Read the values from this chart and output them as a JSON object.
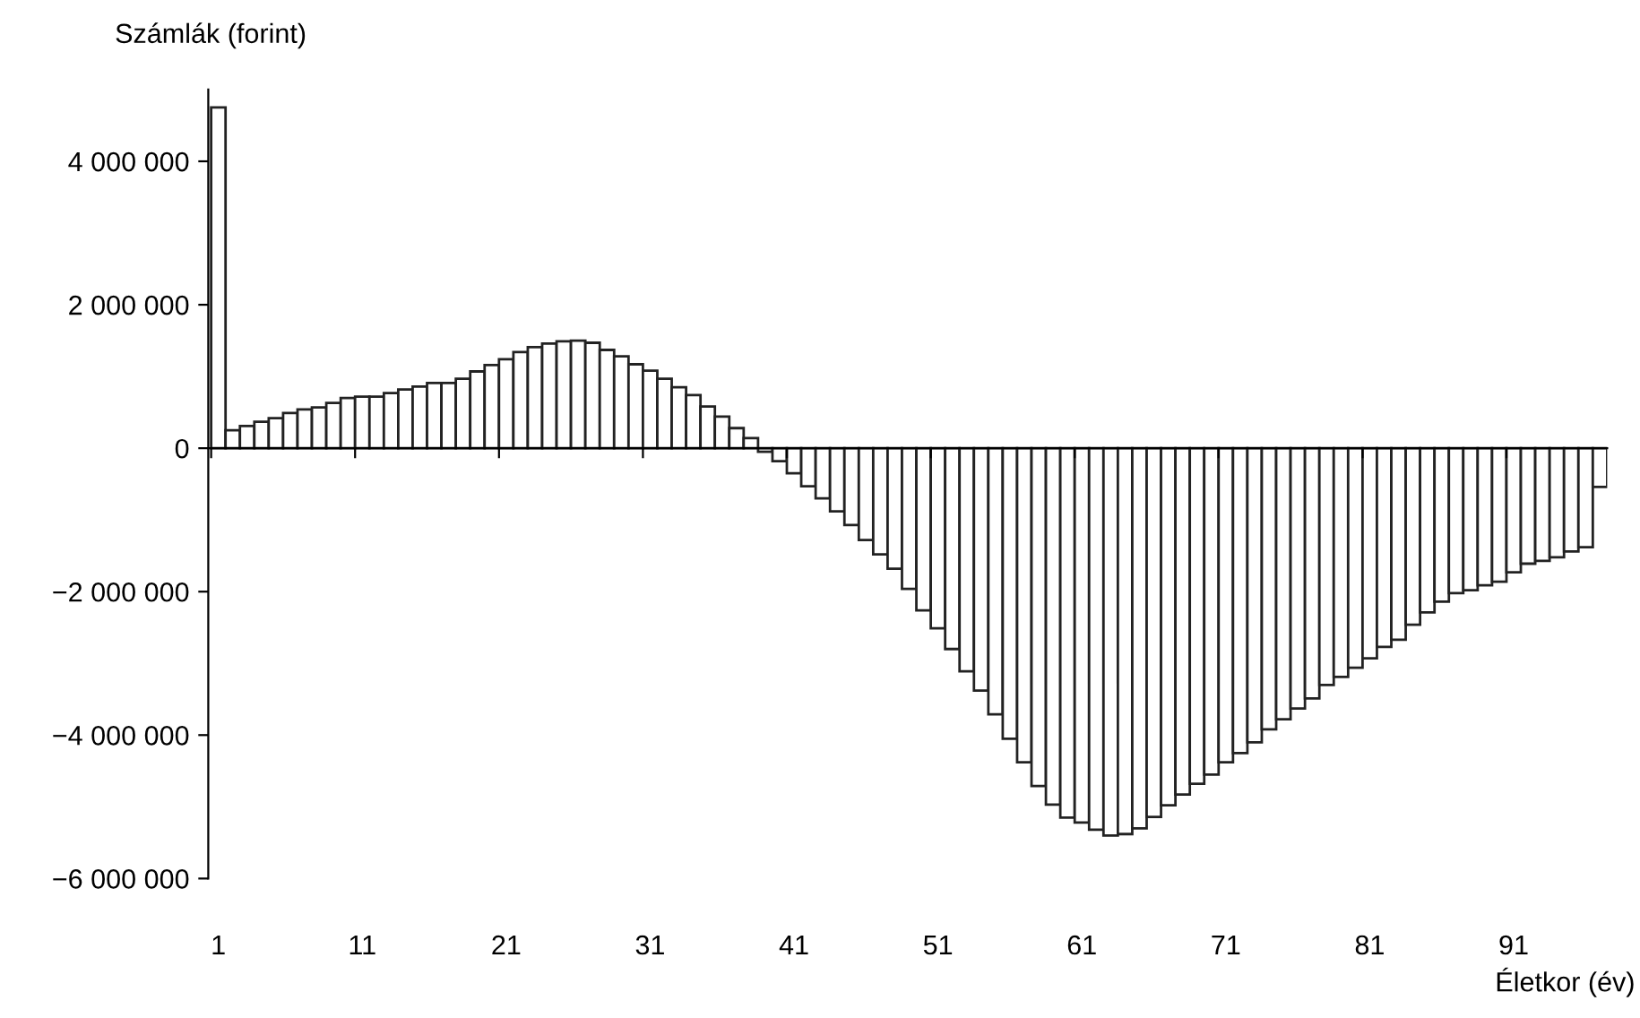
{
  "chart_data": {
    "type": "bar",
    "xlabel": "Életkor (év)",
    "ylabel": "Számlák (forint)",
    "categories": [
      "1",
      null,
      null,
      null,
      null,
      null,
      null,
      null,
      null,
      null,
      "11",
      null,
      null,
      null,
      null,
      null,
      null,
      null,
      null,
      null,
      "21",
      null,
      null,
      null,
      null,
      null,
      null,
      null,
      null,
      null,
      "31",
      null,
      null,
      null,
      null,
      null,
      null,
      null,
      null,
      null,
      "41",
      null,
      null,
      null,
      null,
      null,
      null,
      null,
      null,
      null,
      "51",
      null,
      null,
      null,
      null,
      null,
      null,
      null,
      null,
      null,
      "61",
      null,
      null,
      null,
      null,
      null,
      null,
      null,
      null,
      null,
      "71",
      null,
      null,
      null,
      null,
      null,
      null,
      null,
      null,
      null,
      "81",
      null,
      null,
      null,
      null,
      null,
      null,
      null,
      null,
      null,
      "91",
      null,
      null,
      null,
      null,
      null,
      null
    ],
    "color": "#ffffff",
    "values": [
      4750000,
      250000,
      310000,
      370000,
      420000,
      490000,
      540000,
      570000,
      630000,
      700000,
      720000,
      720000,
      770000,
      820000,
      860000,
      910000,
      910000,
      970000,
      1070000,
      1160000,
      1240000,
      1340000,
      1410000,
      1460000,
      1490000,
      1500000,
      1470000,
      1370000,
      1280000,
      1170000,
      1080000,
      970000,
      850000,
      740000,
      580000,
      440000,
      280000,
      140000,
      -50000,
      -180000,
      -350000,
      -530000,
      -700000,
      -880000,
      -1070000,
      -1280000,
      -1480000,
      -1680000,
      -1960000,
      -2260000,
      -2510000,
      -2800000,
      -3110000,
      -3380000,
      -3710000,
      -4050000,
      -4380000,
      -4710000,
      -4970000,
      -5150000,
      -5220000,
      -5320000,
      -5400000,
      -5380000,
      -5300000,
      -5140000,
      -4980000,
      -4830000,
      -4680000,
      -4550000,
      -4380000,
      -4250000,
      -4100000,
      -3920000,
      -3780000,
      -3630000,
      -3490000,
      -3300000,
      -3190000,
      -3060000,
      -2930000,
      -2770000,
      -2670000,
      -2460000,
      -2290000,
      -2140000,
      -2020000,
      -1980000,
      -1910000,
      -1860000,
      -1730000,
      -1610000,
      -1570000,
      -1520000,
      -1440000,
      -1380000,
      -540000
    ],
    "ylim": [
      -6000000,
      5000000
    ],
    "yticks": [
      {
        "value": -6000000,
        "label": "−6 000 000"
      },
      {
        "value": -4000000,
        "label": "−4 000 000"
      },
      {
        "value": -2000000,
        "label": "−2 000 000"
      },
      {
        "value": 0,
        "label": "0"
      },
      {
        "value": 2000000,
        "label": "2 000 000"
      },
      {
        "value": 4000000,
        "label": "4 000 000"
      }
    ],
    "legend": false
  }
}
